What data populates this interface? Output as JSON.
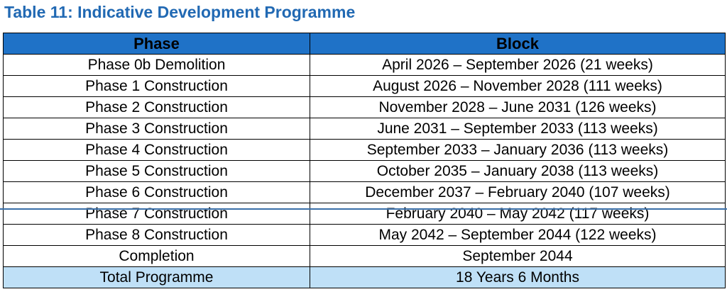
{
  "title": "Table 11: Indicative Development Programme",
  "table": {
    "headers": {
      "phase": "Phase",
      "block": "Block"
    },
    "rows": [
      {
        "phase": "Phase 0b Demolition",
        "block": "April 2026 – September 2026 (21 weeks)"
      },
      {
        "phase": "Phase 1 Construction",
        "block": "August 2026 – November 2028 (111 weeks)"
      },
      {
        "phase": "Phase 2 Construction",
        "block": "November 2028 – June 2031 (126 weeks)"
      },
      {
        "phase": "Phase 3 Construction",
        "block": "June 2031 – September 2033 (113 weeks)"
      },
      {
        "phase": "Phase 4 Construction",
        "block": "September 2033 – January 2036 (113 weeks)"
      },
      {
        "phase": "Phase 5 Construction",
        "block": "October 2035 – January 2038 (113 weeks)"
      },
      {
        "phase": "Phase 6 Construction",
        "block": "December 2037 – February 2040 (107 weeks)"
      },
      {
        "phase": "Phase 7 Construction",
        "block": "February 2040 – May 2042 (117 weeks)"
      },
      {
        "phase": "Phase 8 Construction",
        "block": "May 2042 – September 2044 (122 weeks)"
      },
      {
        "phase": "Completion",
        "block": "September 2044"
      }
    ],
    "total": {
      "phase": "Total Programme",
      "block": "18 Years 6 Months"
    }
  },
  "colors": {
    "title": "#2169b3",
    "header_bg": "#1f72c7",
    "total_bg": "#bfe0f7"
  }
}
